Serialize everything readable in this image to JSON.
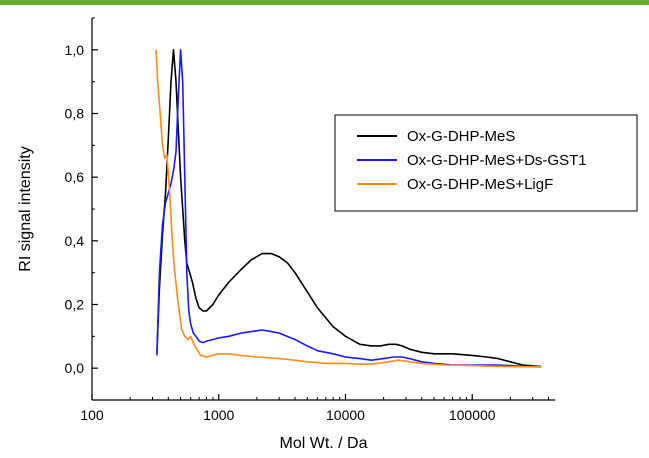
{
  "page": {
    "top_band_color": "#6aab2e"
  },
  "chart_data": {
    "type": "line",
    "title": "",
    "xlabel": "Mol Wt. / Da",
    "ylabel": "RI signal intensity",
    "x_scale": "log",
    "xlim": [
      100,
      450000
    ],
    "ylim": [
      -0.1,
      1.1
    ],
    "x_ticks": [
      100,
      1000,
      10000,
      100000
    ],
    "x_tick_labels": [
      "100",
      "1000",
      "10000",
      "100000"
    ],
    "y_ticks": [
      0.0,
      0.2,
      0.4,
      0.6,
      0.8,
      1.0
    ],
    "y_tick_labels": [
      "0,0",
      "0,2",
      "0,4",
      "0,6",
      "0,8",
      "1,0"
    ],
    "grid": false,
    "legend_position": "right",
    "series": [
      {
        "name": "Ox-G-DHP-MeS",
        "color": "#000000",
        "x": [
          325,
          340,
          360,
          380,
          400,
          420,
          440,
          460,
          480,
          500,
          520,
          540,
          560,
          590,
          620,
          660,
          700,
          750,
          800,
          900,
          1000,
          1200,
          1500,
          1800,
          2200,
          2600,
          3000,
          3500,
          4000,
          5000,
          6000,
          8000,
          10000,
          13000,
          16000,
          19000,
          22000,
          25000,
          28000,
          32000,
          40000,
          50000,
          70000,
          100000,
          130000,
          160000,
          200000,
          250000,
          350000
        ],
        "y": [
          0.05,
          0.25,
          0.42,
          0.55,
          0.72,
          0.9,
          1.0,
          0.9,
          0.75,
          0.6,
          0.5,
          0.4,
          0.33,
          0.3,
          0.27,
          0.22,
          0.19,
          0.18,
          0.18,
          0.2,
          0.23,
          0.27,
          0.31,
          0.34,
          0.36,
          0.36,
          0.35,
          0.33,
          0.3,
          0.24,
          0.19,
          0.13,
          0.1,
          0.075,
          0.07,
          0.07,
          0.075,
          0.075,
          0.07,
          0.06,
          0.05,
          0.045,
          0.045,
          0.04,
          0.035,
          0.03,
          0.02,
          0.01,
          0.005
        ]
      },
      {
        "name": "Ox-G-DHP-MeS+Ds-GST1",
        "color": "#1a1aff",
        "x": [
          325,
          340,
          360,
          380,
          400,
          420,
          440,
          460,
          480,
          500,
          520,
          540,
          560,
          580,
          600,
          630,
          660,
          700,
          750,
          800,
          900,
          1000,
          1200,
          1500,
          1800,
          2200,
          2600,
          3000,
          4000,
          5000,
          6000,
          8000,
          10000,
          13000,
          16000,
          20000,
          24000,
          28000,
          32000,
          40000,
          50000,
          70000,
          100000,
          150000,
          200000,
          250000,
          350000
        ],
        "y": [
          0.04,
          0.3,
          0.45,
          0.52,
          0.55,
          0.58,
          0.62,
          0.68,
          0.85,
          1.0,
          0.9,
          0.6,
          0.3,
          0.18,
          0.14,
          0.11,
          0.1,
          0.085,
          0.08,
          0.085,
          0.09,
          0.095,
          0.1,
          0.11,
          0.115,
          0.12,
          0.115,
          0.11,
          0.09,
          0.07,
          0.055,
          0.045,
          0.035,
          0.03,
          0.025,
          0.03,
          0.035,
          0.035,
          0.03,
          0.02,
          0.015,
          0.01,
          0.01,
          0.01,
          0.008,
          0.006,
          0.005
        ]
      },
      {
        "name": "Ox-G-DHP-MeS+LigF",
        "color": "#ff8c1a",
        "x": [
          320,
          330,
          345,
          360,
          375,
          390,
          410,
          430,
          450,
          480,
          510,
          540,
          570,
          600,
          630,
          670,
          720,
          800,
          900,
          1000,
          1200,
          1500,
          2000,
          3000,
          4000,
          5000,
          7000,
          10000,
          14000,
          18000,
          22000,
          26000,
          30000,
          40000,
          60000,
          100000,
          150000,
          200000,
          350000
        ],
        "y": [
          1.0,
          0.9,
          0.8,
          0.7,
          0.66,
          0.67,
          0.55,
          0.4,
          0.3,
          0.2,
          0.12,
          0.1,
          0.09,
          0.1,
          0.08,
          0.06,
          0.04,
          0.035,
          0.04,
          0.045,
          0.045,
          0.04,
          0.035,
          0.03,
          0.025,
          0.02,
          0.015,
          0.015,
          0.012,
          0.015,
          0.02,
          0.025,
          0.022,
          0.015,
          0.01,
          0.008,
          0.006,
          0.005,
          0.004
        ]
      }
    ]
  }
}
